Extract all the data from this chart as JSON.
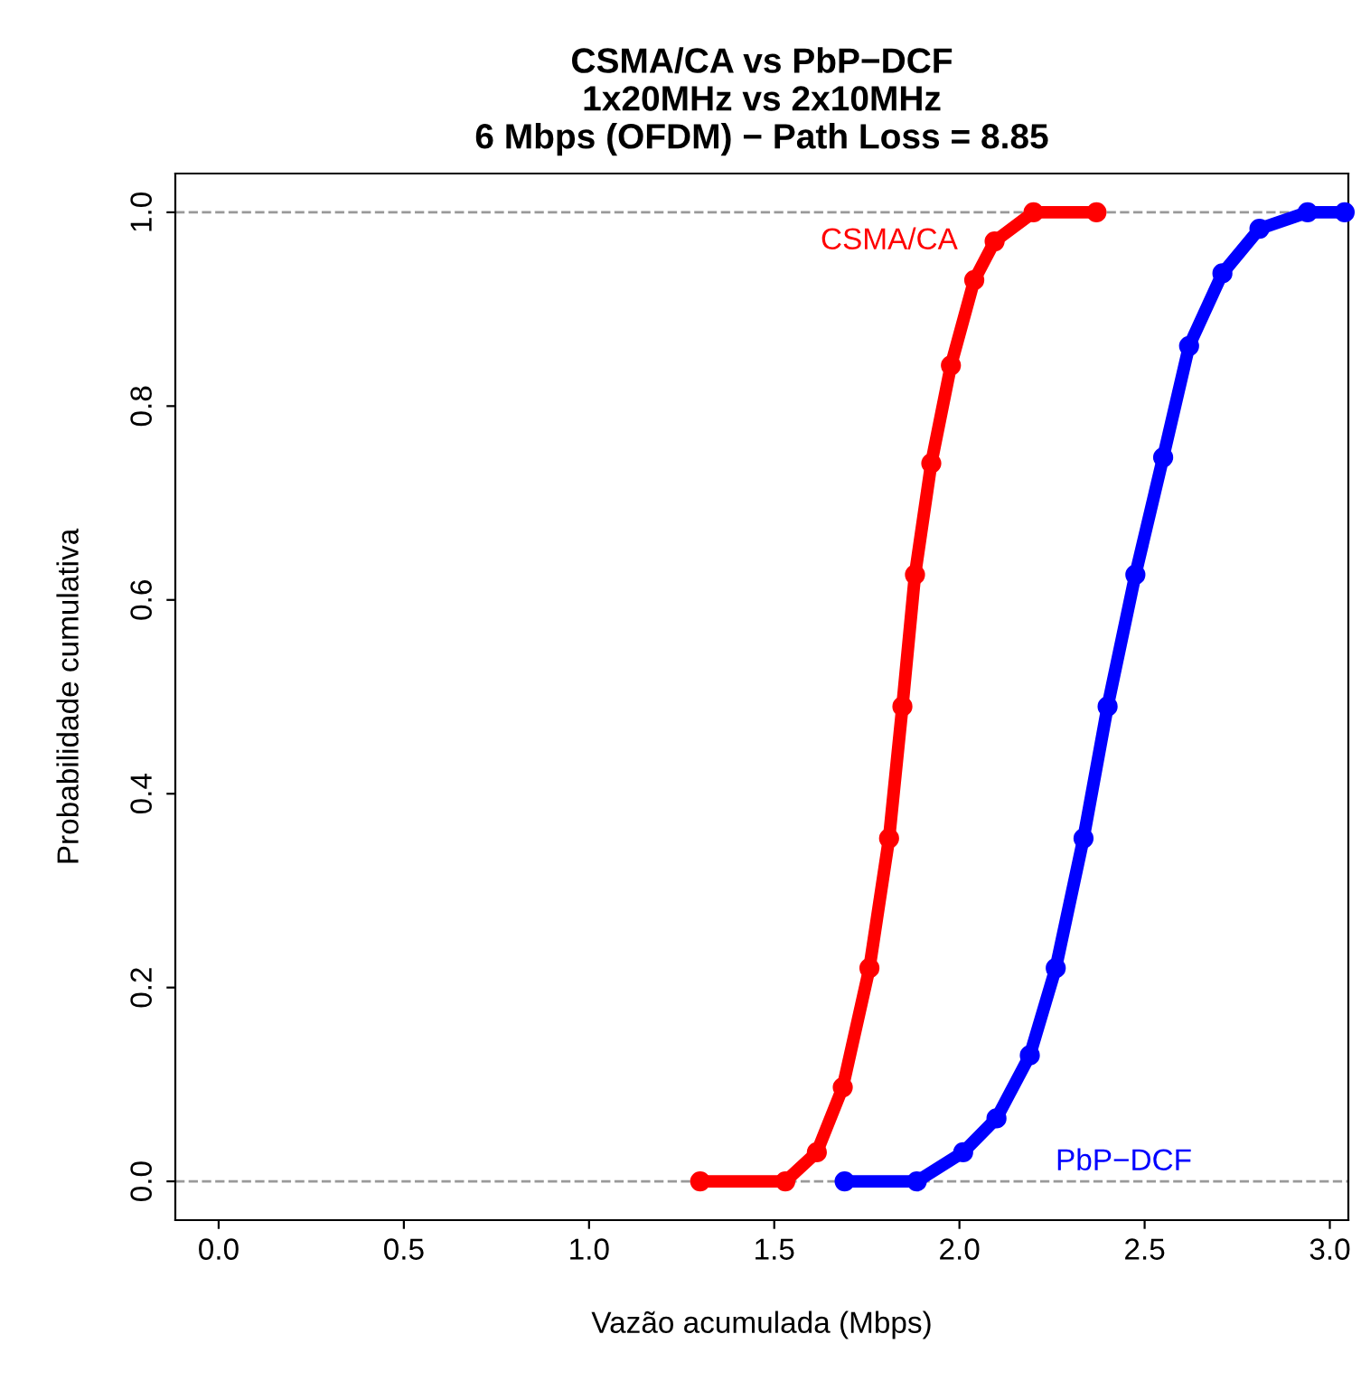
{
  "chart_data": {
    "type": "line",
    "title": "CSMA/CA vs PbP−DCF\n1x20MHz vs 2x10MHz\n6 Mbps (OFDM) − Path Loss = 8.85",
    "xlabel": "Vazão acumulada (Mbps)",
    "ylabel": "Probabilidade cumulativa",
    "series": [
      {
        "name": "CSMA/CA",
        "color": "#ff0000",
        "x": [
          1.3,
          1.53,
          1.615,
          1.685,
          1.757,
          1.81,
          1.846,
          1.88,
          1.924,
          1.977,
          2.04,
          2.095,
          2.2,
          2.37
        ],
        "values": [
          0,
          0,
          0.03,
          0.097,
          0.22,
          0.354,
          0.49,
          0.626,
          0.741,
          0.842,
          0.93,
          0.97,
          1.0,
          1.0
        ]
      },
      {
        "name": "PbP−DCF",
        "color": "#0000ff",
        "x": [
          1.69,
          1.885,
          2.01,
          2.1,
          2.19,
          2.26,
          2.335,
          2.4,
          2.475,
          2.55,
          2.62,
          2.71,
          2.81,
          2.94,
          3.04
        ],
        "values": [
          0,
          0,
          0.03,
          0.065,
          0.13,
          0.22,
          0.354,
          0.49,
          0.626,
          0.747,
          0.862,
          0.937,
          0.983,
          1.0,
          1.0
        ]
      }
    ],
    "ref_lines": [
      {
        "axis": "y",
        "value": 0,
        "color": "#999999",
        "line_style": "dashed"
      },
      {
        "axis": "y",
        "value": 1,
        "color": "#999999",
        "line_style": "dashed"
      }
    ],
    "xlim": [
      -0.117,
      3.05
    ],
    "ylim": [
      -0.04,
      1.04
    ],
    "xticks": [
      {
        "value": 0,
        "label": "0.0"
      },
      0.5,
      {
        "value": 1,
        "label": "1.0"
      },
      1.5,
      {
        "value": 2,
        "label": "2.0"
      },
      2.5,
      {
        "value": 3,
        "label": "3.0"
      }
    ],
    "yticks": [
      {
        "value": 0,
        "label": "0.0"
      },
      0.2,
      0.4,
      0.6,
      0.8,
      {
        "value": 1,
        "label": "1.0"
      }
    ],
    "grid": false,
    "marker": "circle",
    "line_style": "solid"
  }
}
